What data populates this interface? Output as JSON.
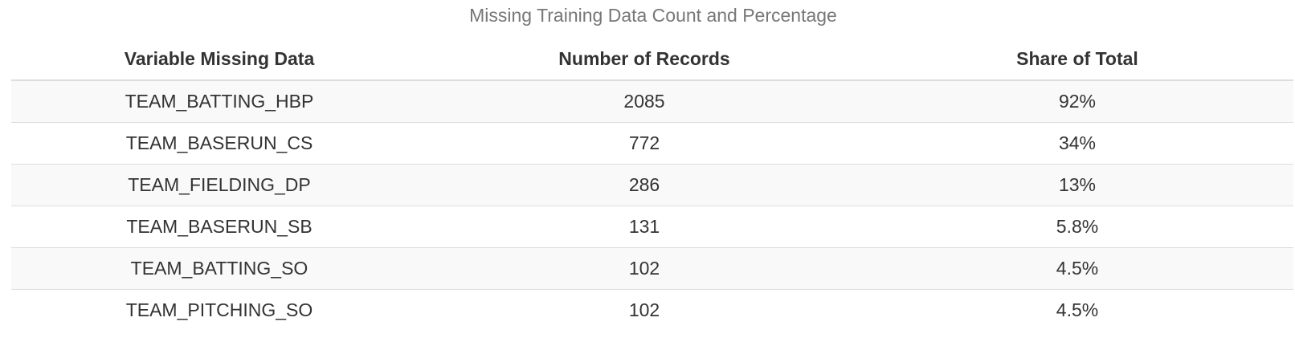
{
  "chart_data": {
    "type": "table",
    "title": "Missing Training Data Count and Percentage",
    "columns": [
      "Variable Missing Data",
      "Number of Records",
      "Share of Total"
    ],
    "rows": [
      [
        "TEAM_BATTING_HBP",
        "2085",
        "92%"
      ],
      [
        "TEAM_BASERUN_CS",
        "772",
        "34%"
      ],
      [
        "TEAM_FIELDING_DP",
        "286",
        "13%"
      ],
      [
        "TEAM_BASERUN_SB",
        "131",
        "5.8%"
      ],
      [
        "TEAM_BATTING_SO",
        "102",
        "4.5%"
      ],
      [
        "TEAM_PITCHING_SO",
        "102",
        "4.5%"
      ]
    ]
  }
}
